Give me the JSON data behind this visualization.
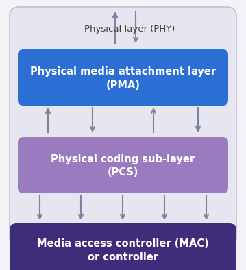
{
  "bg_color": "#f2f2f7",
  "outer_box_facecolor": "#e6e6f0",
  "outer_box_edgecolor": "#c0c0d0",
  "pma_color": "#2b6fd4",
  "pcs_color": "#9b7bbf",
  "mac_color": "#3d2d7a",
  "text_white": "#ffffff",
  "text_dark": "#404040",
  "arrow_color": "#8080a0",
  "phy_label": "Physical layer (PHY)",
  "pma_line1": "Physical media attachment layer",
  "pma_line2": "(PMA)",
  "pcs_line1": "Physical coding sub-layer",
  "pcs_line2": "(PCS)",
  "mac_line1": "Media access controller (MAC)",
  "mac_line2": "or controller",
  "figsize": [
    3.59,
    3.94
  ],
  "dpi": 100
}
